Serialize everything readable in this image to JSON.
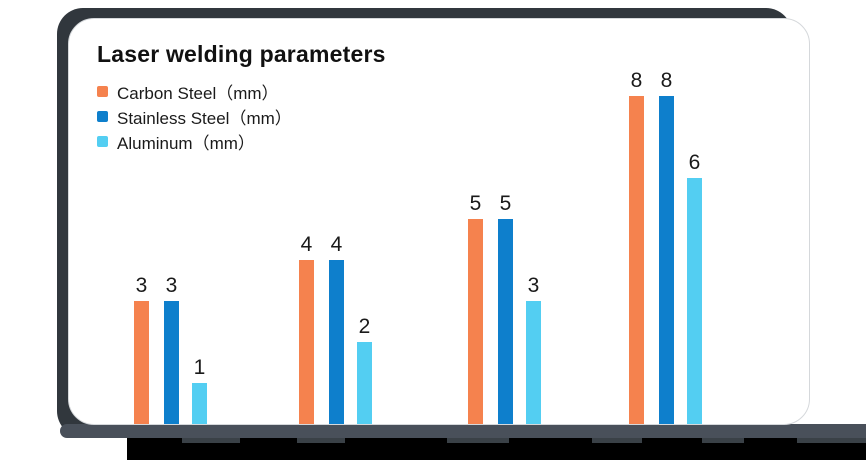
{
  "card": {
    "title": "Laser welding parameters"
  },
  "legend": {
    "items": [
      {
        "label": "Carbon Steel（mm）",
        "color": "#F5824E"
      },
      {
        "label": "Stainless Steel（mm）",
        "color": "#0E7FCC"
      },
      {
        "label": "Aluminum（mm）",
        "color": "#53CEF2"
      }
    ]
  },
  "chart_data": {
    "type": "bar",
    "title": "Laser welding parameters",
    "categories": [
      "",
      "",
      "",
      ""
    ],
    "category_labels_redacted": true,
    "series": [
      {
        "name": "Carbon Steel（mm）",
        "color": "#F5824E",
        "values": [
          3,
          4,
          5,
          8
        ]
      },
      {
        "name": "Stainless Steel（mm）",
        "color": "#0E7FCC",
        "values": [
          3,
          4,
          5,
          8
        ]
      },
      {
        "name": "Aluminum（mm）",
        "color": "#53CEF2",
        "values": [
          1,
          2,
          3,
          6
        ]
      }
    ],
    "unit": "mm",
    "ylim": [
      0,
      8
    ],
    "grid": false,
    "value_labels": true,
    "legend_position": "top-left"
  },
  "colors": {
    "carbon_steel": "#F5824E",
    "stainless_steel": "#0E7FCC",
    "aluminum": "#53CEF2",
    "backdrop": "#31373D",
    "bottom_band": "#49505A",
    "redaction": "#000000",
    "card_background": "#FFFFFF",
    "card_border": "#D5D8DB",
    "text": "#1A1A1A"
  }
}
